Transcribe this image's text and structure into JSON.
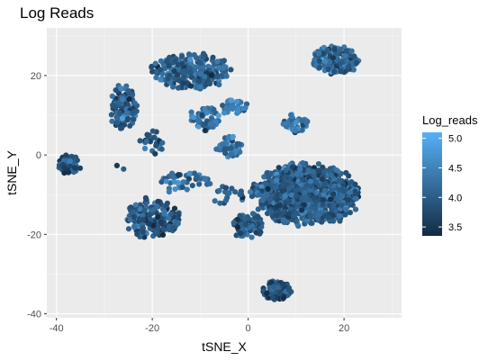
{
  "chart_data": {
    "type": "scatter",
    "title": "Log Reads",
    "xlabel": "tSNE_X",
    "ylabel": "tSNE_Y",
    "xlim": [
      -42,
      32
    ],
    "ylim": [
      -41,
      32
    ],
    "x_ticks": [
      -40,
      -20,
      0,
      20
    ],
    "y_ticks": [
      -40,
      -20,
      0,
      20
    ],
    "grid": true,
    "panel_background": "#ebebeb",
    "legend": {
      "title": "Log_reads",
      "position": "right",
      "ticks": [
        3.5,
        4.0,
        4.5,
        5.0
      ],
      "range": [
        3.35,
        5.1
      ],
      "colors": {
        "low": "#132b43",
        "high": "#56b1f7"
      }
    },
    "clusters": [
      {
        "center": [
          -37,
          -2.5
        ],
        "spread": [
          2.5,
          2.5
        ],
        "count": 45,
        "value_mean": 3.9
      },
      {
        "center": [
          -27,
          -3.5
        ],
        "spread": [
          1.2,
          1.0
        ],
        "count": 2,
        "value_mean": 3.8
      },
      {
        "center": [
          -20,
          -16
        ],
        "spread": [
          5.5,
          5.0
        ],
        "count": 190,
        "value_mean": 3.9
      },
      {
        "center": [
          -26,
          12
        ],
        "spread": [
          2.8,
          5.5
        ],
        "count": 110,
        "value_mean": 4.0
      },
      {
        "center": [
          -12,
          21
        ],
        "spread": [
          8.0,
          4.5
        ],
        "count": 230,
        "value_mean": 4.1
      },
      {
        "center": [
          -9,
          9
        ],
        "spread": [
          3.5,
          3.0
        ],
        "count": 60,
        "value_mean": 4.2
      },
      {
        "center": [
          -20,
          3
        ],
        "spread": [
          2.5,
          3.0
        ],
        "count": 25,
        "value_mean": 4.0
      },
      {
        "center": [
          -3,
          12
        ],
        "spread": [
          3.0,
          2.0
        ],
        "count": 30,
        "value_mean": 4.4
      },
      {
        "center": [
          -4,
          2
        ],
        "spread": [
          2.5,
          3.0
        ],
        "count": 50,
        "value_mean": 4.3
      },
      {
        "center": [
          -13,
          -7
        ],
        "spread": [
          5.0,
          3.0
        ],
        "count": 45,
        "value_mean": 4.2
      },
      {
        "center": [
          -4,
          -10
        ],
        "spread": [
          3.5,
          2.5
        ],
        "count": 20,
        "value_mean": 4.0
      },
      {
        "center": [
          18,
          24
        ],
        "spread": [
          5.0,
          3.5
        ],
        "count": 170,
        "value_mean": 4.1
      },
      {
        "center": [
          10,
          8
        ],
        "spread": [
          3.0,
          2.5
        ],
        "count": 40,
        "value_mean": 4.3
      },
      {
        "center": [
          12,
          -10
        ],
        "spread": [
          11.0,
          7.5
        ],
        "count": 950,
        "value_mean": 4.0
      },
      {
        "center": [
          0,
          -18
        ],
        "spread": [
          3.5,
          3.5
        ],
        "count": 80,
        "value_mean": 3.9
      },
      {
        "center": [
          6,
          -34
        ],
        "spread": [
          3.0,
          2.5
        ],
        "count": 90,
        "value_mean": 3.8
      }
    ]
  }
}
